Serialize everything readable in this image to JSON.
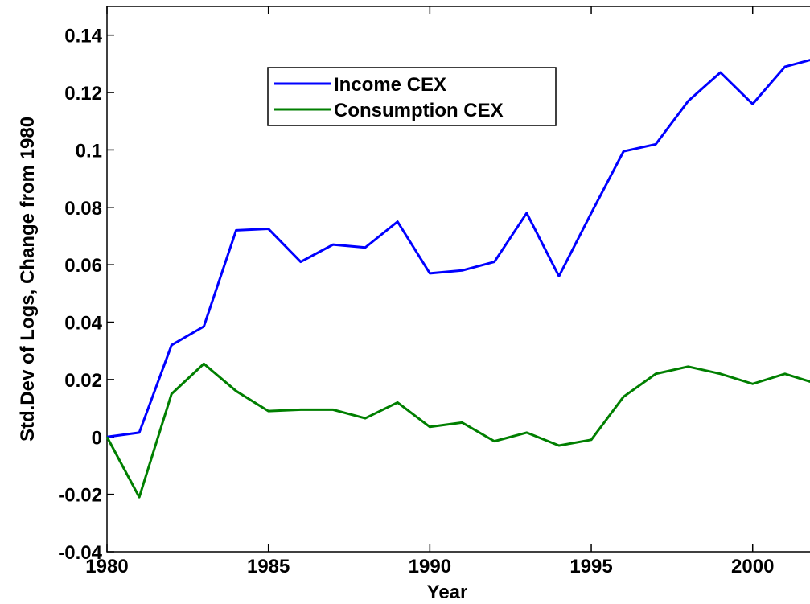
{
  "chart_data": {
    "type": "line",
    "x_label": "Year",
    "y_label": "Std.Dev of Logs, Change from 1980",
    "x": [
      1980,
      1981,
      1982,
      1983,
      1984,
      1985,
      1986,
      1987,
      1988,
      1989,
      1990,
      1991,
      1992,
      1993,
      1994,
      1995,
      1996,
      1997,
      1998,
      1999,
      2000,
      2001,
      2002
    ],
    "series": [
      {
        "name": "Income CEX",
        "color": "#0000ff",
        "values": [
          0,
          0.0015,
          0.032,
          0.0385,
          0.072,
          0.0725,
          0.061,
          0.067,
          0.066,
          0.075,
          0.057,
          0.058,
          0.061,
          0.078,
          0.056,
          0.078,
          0.0995,
          0.102,
          0.117,
          0.127,
          0.116,
          0.129,
          0.132
        ]
      },
      {
        "name": "Consumption CEX",
        "color": "#007f00",
        "values": [
          0,
          -0.021,
          0.015,
          0.0255,
          0.016,
          0.009,
          0.0095,
          0.0095,
          0.0065,
          0.012,
          0.0035,
          0.005,
          -0.0015,
          0.0015,
          -0.003,
          -0.001,
          0.014,
          0.022,
          0.0245,
          0.022,
          0.0185,
          0.022,
          0.0185
        ]
      }
    ],
    "xlim": [
      1980,
      2002
    ],
    "xticks": [
      1980,
      1985,
      1990,
      1995,
      2000
    ],
    "ylim": [
      -0.04,
      0.15
    ],
    "yticks": [
      -0.04,
      -0.02,
      0,
      0.02,
      0.04,
      0.06,
      0.08,
      0.1,
      0.12,
      0.14
    ],
    "legend": "upper-left"
  }
}
